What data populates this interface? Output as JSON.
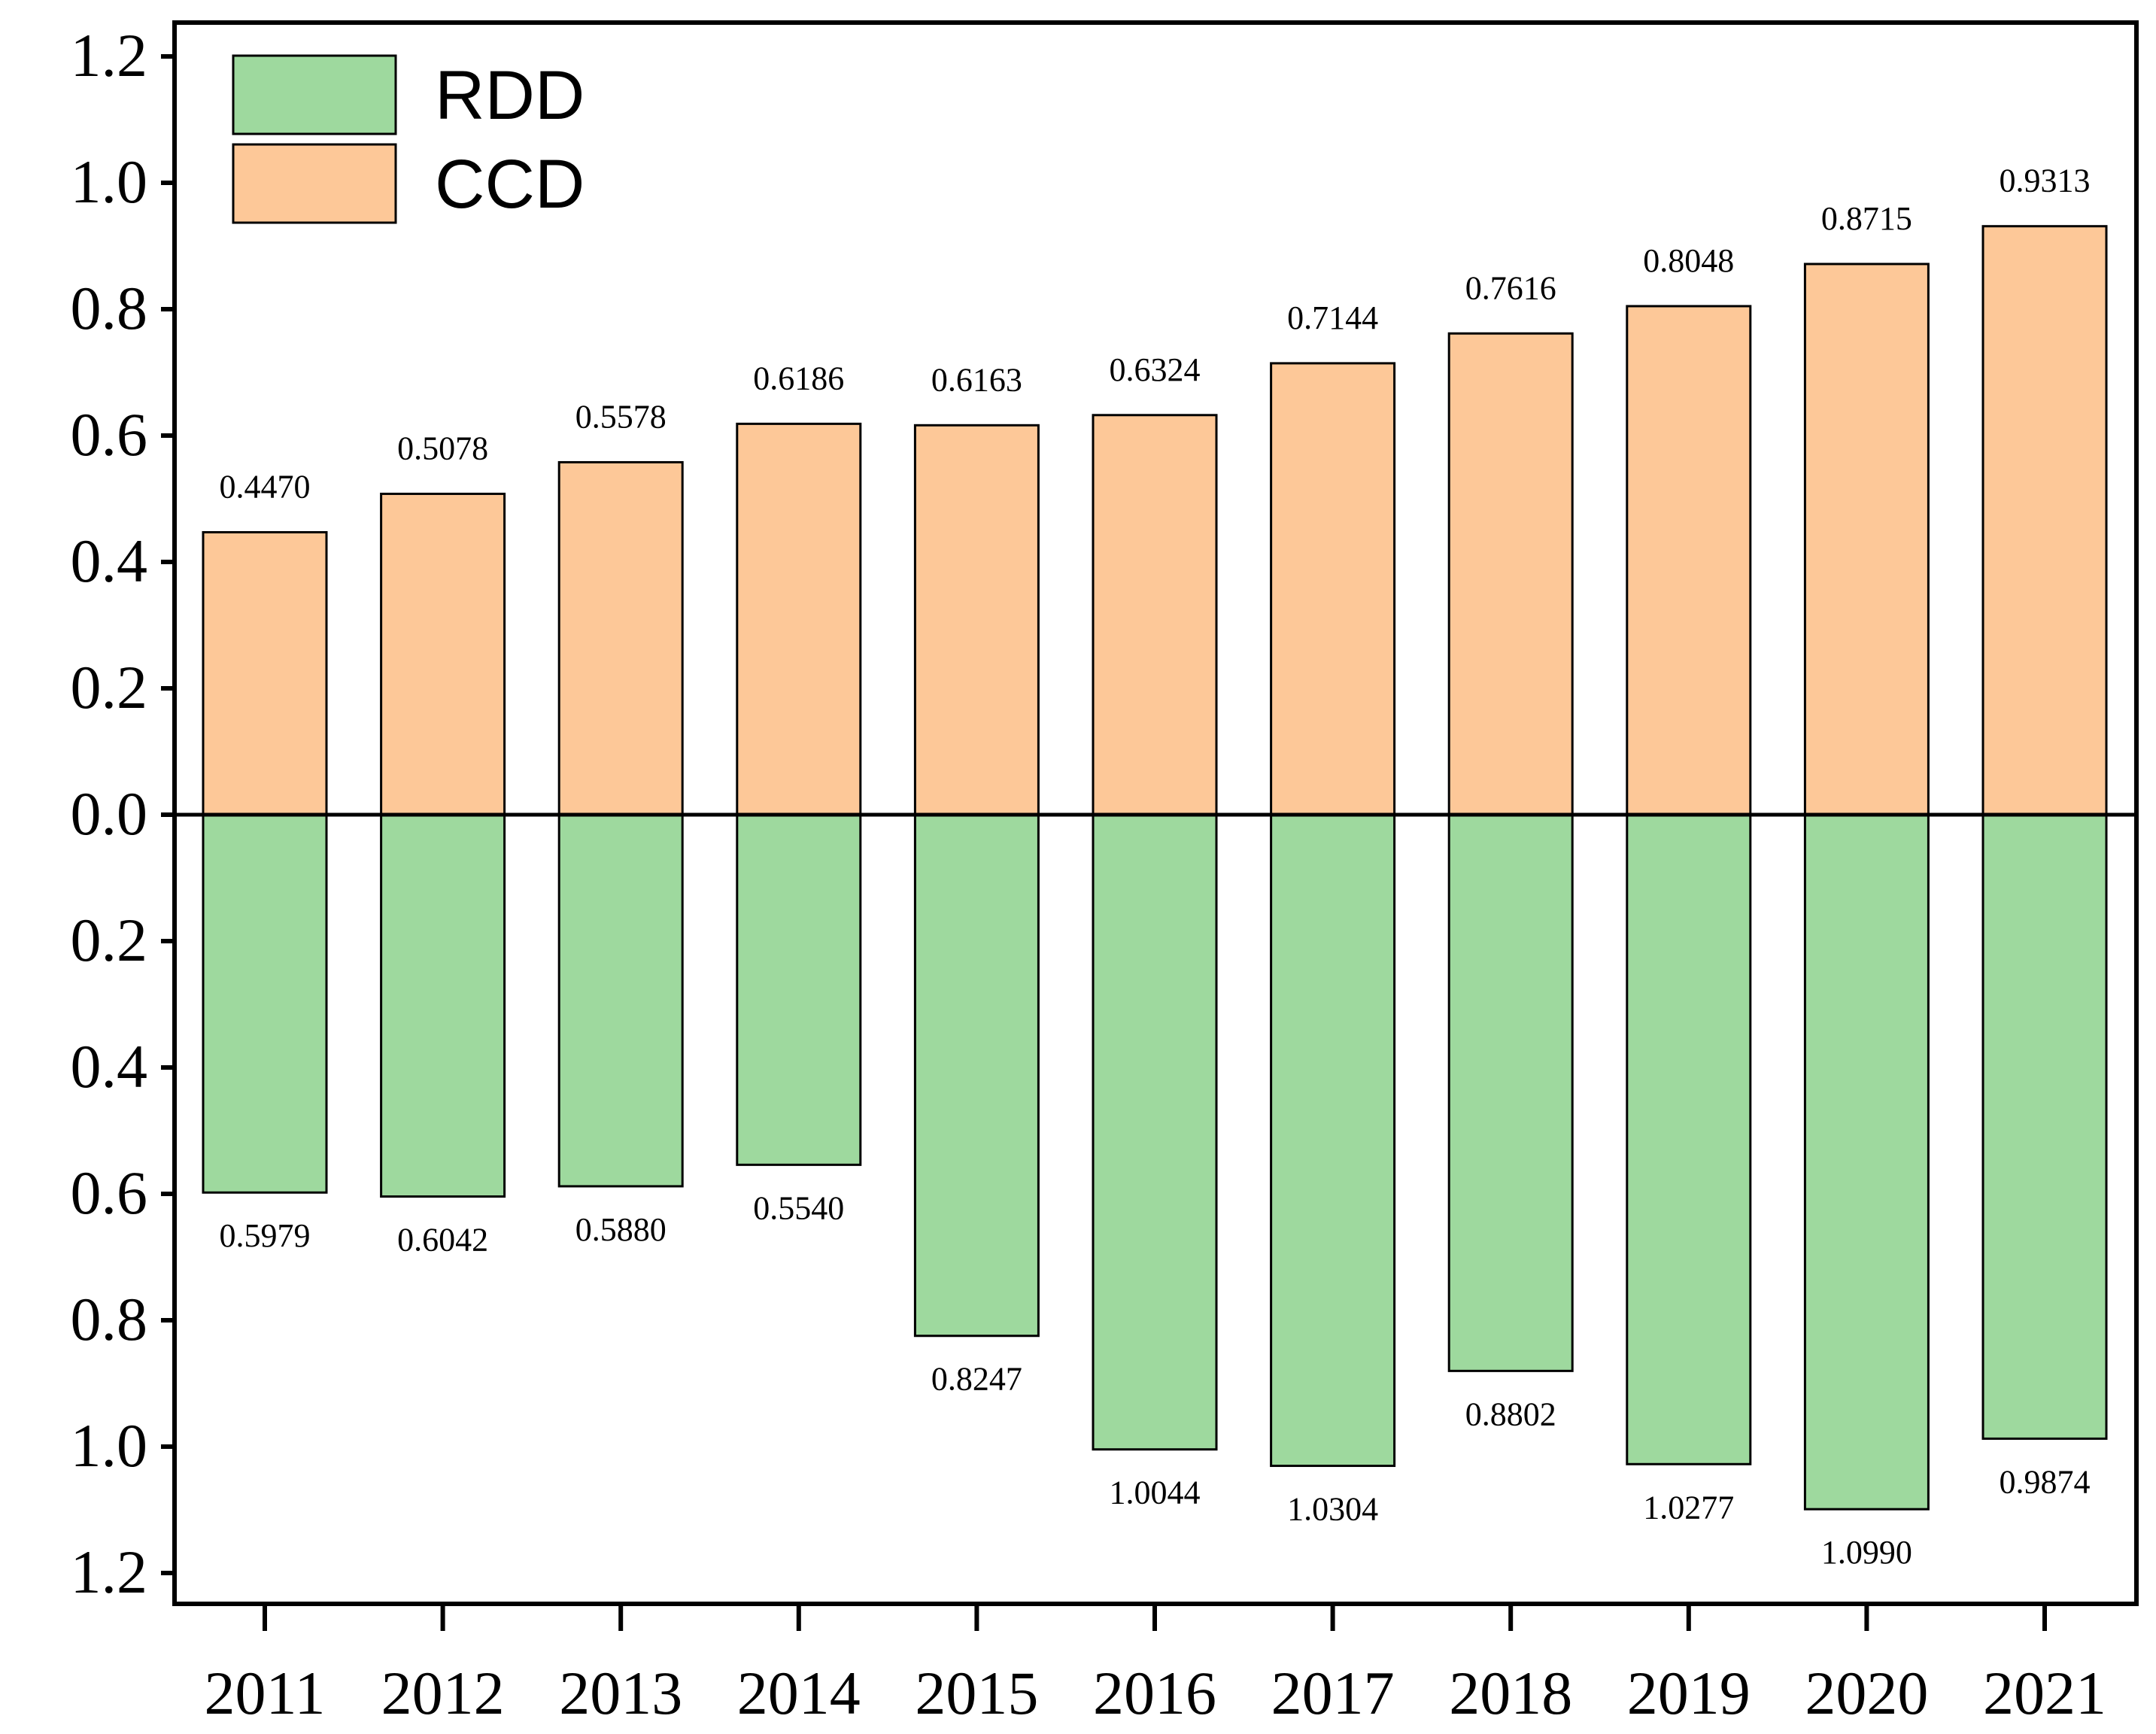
{
  "chart_data": {
    "type": "bar",
    "title": "",
    "xlabel": "",
    "ylabel": "",
    "ylim": [
      -1.2,
      1.2
    ],
    "categories": [
      "2011",
      "2012",
      "2013",
      "2014",
      "2015",
      "2016",
      "2017",
      "2018",
      "2019",
      "2020",
      "2021"
    ],
    "y_ticks": [
      {
        "value": 1.2,
        "label": "1.2"
      },
      {
        "value": 1.0,
        "label": "1.0"
      },
      {
        "value": 0.8,
        "label": "0.8"
      },
      {
        "value": 0.6,
        "label": "0.6"
      },
      {
        "value": 0.4,
        "label": "0.4"
      },
      {
        "value": 0.2,
        "label": "0.2"
      },
      {
        "value": 0.0,
        "label": "0.0"
      },
      {
        "value": -0.2,
        "label": "0.2"
      },
      {
        "value": -0.4,
        "label": "0.4"
      },
      {
        "value": -0.6,
        "label": "0.6"
      },
      {
        "value": -0.8,
        "label": "0.8"
      },
      {
        "value": -1.0,
        "label": "1.0"
      },
      {
        "value": -1.2,
        "label": "1.2"
      }
    ],
    "legend_position": "top-left",
    "series": [
      {
        "name": "RDD",
        "color": "#9ed99e",
        "direction": "down",
        "values": [
          0.5979,
          0.6042,
          0.588,
          0.554,
          0.8247,
          1.0044,
          1.0304,
          0.8802,
          1.0277,
          1.099,
          0.9874
        ],
        "labels": [
          "0.5979",
          "0.6042",
          "0.5880",
          "0.5540",
          "0.8247",
          "1.0044",
          "1.0304",
          "0.8802",
          "1.0277",
          "1.0990",
          "0.9874"
        ]
      },
      {
        "name": "CCD",
        "color": "#fdc898",
        "direction": "up",
        "values": [
          0.447,
          0.5078,
          0.5578,
          0.6186,
          0.6163,
          0.6324,
          0.7144,
          0.7616,
          0.8048,
          0.8715,
          0.9313
        ],
        "labels": [
          "0.4470",
          "0.5078",
          "0.5578",
          "0.6186",
          "0.6163",
          "0.6324",
          "0.7144",
          "0.7616",
          "0.8048",
          "0.8715",
          "0.9313"
        ]
      }
    ]
  }
}
